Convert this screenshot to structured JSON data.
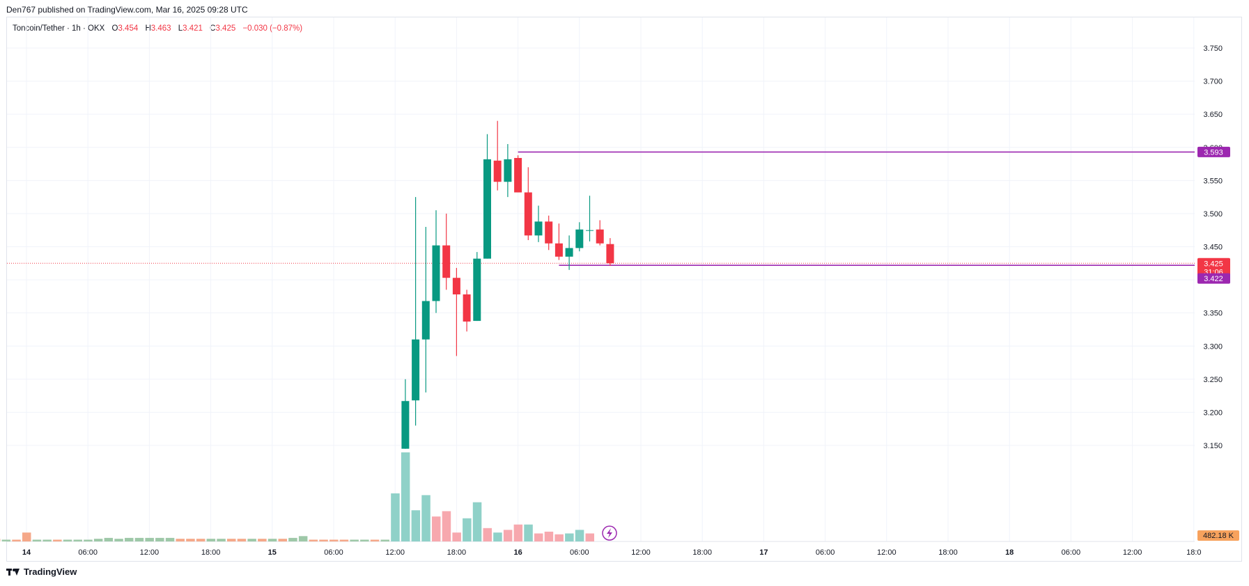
{
  "header": {
    "published": "Den767 published on TradingView.com, Mar 16, 2025 09:28 UTC"
  },
  "legend": {
    "symbol": "Toncoin/Tether · 1h · OKX",
    "o_label": "O",
    "o": "3.454",
    "h_label": "H",
    "h": "3.463",
    "l_label": "L",
    "l": "3.421",
    "c_label": "C",
    "c": "3.425",
    "change": "−0.030 (−0.87%)"
  },
  "footer": {
    "brand": "TradingView"
  },
  "colors": {
    "up": "#089981",
    "down": "#f23645",
    "vol_up": "#8fd1c8",
    "vol_down": "#f7a8ae",
    "vol_up_old": "#9ec8a8",
    "vol_down_old": "#f5a889",
    "line": "#9c27b0",
    "volume_badge": "#f7a25d",
    "grid": "#f0f3fa"
  },
  "chart_data": {
    "type": "candlestick",
    "title": "Toncoin/Tether · 1h · OKX",
    "y_axis": {
      "ticks": [
        "3.750",
        "3.700",
        "3.650",
        "3.600",
        "3.550",
        "3.500",
        "3.450",
        "3.400",
        "3.350",
        "3.300",
        "3.250",
        "3.200",
        "3.150"
      ],
      "range": [
        3.12,
        3.77
      ]
    },
    "x_axis": {
      "ticks": [
        "14",
        "06:00",
        "12:00",
        "18:00",
        "15",
        "06:00",
        "12:00",
        "18:00",
        "16",
        "06:00",
        "12:00",
        "18:00",
        "17",
        "06:00",
        "12:00",
        "18:00",
        "18",
        "06:00",
        "12:00",
        "18:0"
      ],
      "start": "Mar 14 00:00",
      "interval_hours": 1
    },
    "candles": [
      {
        "t": "Mar 15 13:00",
        "o": 3.145,
        "h": 3.25,
        "l": 3.145,
        "c": 3.217
      },
      {
        "t": "Mar 15 14:00",
        "o": 3.218,
        "h": 3.525,
        "l": 3.18,
        "c": 3.31
      },
      {
        "t": "Mar 15 15:00",
        "o": 3.31,
        "h": 3.48,
        "l": 3.23,
        "c": 3.368
      },
      {
        "t": "Mar 15 16:00",
        "o": 3.368,
        "h": 3.505,
        "l": 3.35,
        "c": 3.452
      },
      {
        "t": "Mar 15 17:00",
        "o": 3.452,
        "h": 3.5,
        "l": 3.385,
        "c": 3.403
      },
      {
        "t": "Mar 15 18:00",
        "o": 3.403,
        "h": 3.418,
        "l": 3.285,
        "c": 3.378
      },
      {
        "t": "Mar 15 19:00",
        "o": 3.378,
        "h": 3.385,
        "l": 3.322,
        "c": 3.337
      },
      {
        "t": "Mar 15 20:00",
        "o": 3.338,
        "h": 3.442,
        "l": 3.338,
        "c": 3.432
      },
      {
        "t": "Mar 15 21:00",
        "o": 3.432,
        "h": 3.62,
        "l": 3.432,
        "c": 3.582
      },
      {
        "t": "Mar 15 22:00",
        "o": 3.58,
        "h": 3.64,
        "l": 3.535,
        "c": 3.548
      },
      {
        "t": "Mar 15 23:00",
        "o": 3.548,
        "h": 3.605,
        "l": 3.525,
        "c": 3.582
      },
      {
        "t": "Mar 16 00:00",
        "o": 3.584,
        "h": 3.588,
        "l": 3.532,
        "c": 3.532
      },
      {
        "t": "Mar 16 01:00",
        "o": 3.532,
        "h": 3.57,
        "l": 3.46,
        "c": 3.467
      },
      {
        "t": "Mar 16 02:00",
        "o": 3.467,
        "h": 3.512,
        "l": 3.457,
        "c": 3.488
      },
      {
        "t": "Mar 16 03:00",
        "o": 3.488,
        "h": 3.497,
        "l": 3.445,
        "c": 3.455
      },
      {
        "t": "Mar 16 04:00",
        "o": 3.455,
        "h": 3.485,
        "l": 3.43,
        "c": 3.435
      },
      {
        "t": "Mar 16 05:00",
        "o": 3.435,
        "h": 3.467,
        "l": 3.415,
        "c": 3.448
      },
      {
        "t": "Mar 16 06:00",
        "o": 3.448,
        "h": 3.487,
        "l": 3.443,
        "c": 3.476
      },
      {
        "t": "Mar 16 07:00",
        "o": 3.475,
        "h": 3.527,
        "l": 3.458,
        "c": 3.475
      },
      {
        "t": "Mar 16 08:00",
        "o": 3.476,
        "h": 3.49,
        "l": 3.452,
        "c": 3.455
      },
      {
        "t": "Mar 16 09:00",
        "o": 3.454,
        "h": 3.463,
        "l": 3.421,
        "c": 3.425
      }
    ],
    "volume_bars": [
      {
        "dir": "up",
        "v": 0.02
      },
      {
        "dir": "down",
        "v": 0.03
      },
      {
        "dir": "up",
        "v": 0.02
      },
      {
        "dir": "down",
        "v": 0.02
      },
      {
        "dir": "down",
        "v": 0.1
      },
      {
        "dir": "up",
        "v": 0.02
      },
      {
        "dir": "up",
        "v": 0.02
      },
      {
        "dir": "down",
        "v": 0.02
      },
      {
        "dir": "up",
        "v": 0.02
      },
      {
        "dir": "up",
        "v": 0.02
      },
      {
        "dir": "up",
        "v": 0.02
      },
      {
        "dir": "up",
        "v": 0.03
      },
      {
        "dir": "up",
        "v": 0.04
      },
      {
        "dir": "up",
        "v": 0.03
      },
      {
        "dir": "up",
        "v": 0.04
      },
      {
        "dir": "up",
        "v": 0.04
      },
      {
        "dir": "up",
        "v": 0.04
      },
      {
        "dir": "up",
        "v": 0.04
      },
      {
        "dir": "up",
        "v": 0.04
      },
      {
        "dir": "down",
        "v": 0.03
      },
      {
        "dir": "down",
        "v": 0.03
      },
      {
        "dir": "down",
        "v": 0.03
      },
      {
        "dir": "up",
        "v": 0.03
      },
      {
        "dir": "up",
        "v": 0.03
      },
      {
        "dir": "down",
        "v": 0.03
      },
      {
        "dir": "down",
        "v": 0.03
      },
      {
        "dir": "up",
        "v": 0.03
      },
      {
        "dir": "down",
        "v": 0.03
      },
      {
        "dir": "up",
        "v": 0.03
      },
      {
        "dir": "down",
        "v": 0.03
      },
      {
        "dir": "up",
        "v": 0.04
      },
      {
        "dir": "up",
        "v": 0.06
      },
      {
        "dir": "down",
        "v": 0.02
      },
      {
        "dir": "down",
        "v": 0.02
      },
      {
        "dir": "down",
        "v": 0.02
      },
      {
        "dir": "down",
        "v": 0.02
      },
      {
        "dir": "up",
        "v": 0.02
      },
      {
        "dir": "up",
        "v": 0.02
      },
      {
        "dir": "down",
        "v": 0.02
      },
      {
        "dir": "up",
        "v": 0.02
      },
      {
        "dir": "up",
        "v": 0.54
      },
      {
        "dir": "up",
        "v": 1.0
      },
      {
        "dir": "up",
        "v": 0.35
      },
      {
        "dir": "up",
        "v": 0.52
      },
      {
        "dir": "down",
        "v": 0.28
      },
      {
        "dir": "down",
        "v": 0.34
      },
      {
        "dir": "down",
        "v": 0.1
      },
      {
        "dir": "up",
        "v": 0.26
      },
      {
        "dir": "up",
        "v": 0.44
      },
      {
        "dir": "down",
        "v": 0.15
      },
      {
        "dir": "up",
        "v": 0.1
      },
      {
        "dir": "down",
        "v": 0.13
      },
      {
        "dir": "down",
        "v": 0.19
      },
      {
        "dir": "up",
        "v": 0.19
      },
      {
        "dir": "down",
        "v": 0.09
      },
      {
        "dir": "down",
        "v": 0.11
      },
      {
        "dir": "down",
        "v": 0.08
      },
      {
        "dir": "up",
        "v": 0.09
      },
      {
        "dir": "up",
        "v": 0.13
      },
      {
        "dir": "down",
        "v": 0.09
      }
    ],
    "horizontal_lines": [
      {
        "price": 3.593,
        "label": "3.593",
        "from": "Mar 16 00:00"
      },
      {
        "price": 3.422,
        "label": "3.422",
        "from": "Mar 16 04:00"
      }
    ],
    "last_price": {
      "price": 3.425,
      "label": "3.425",
      "countdown": "31:06"
    },
    "volume_badge": "482.18 K",
    "grid": true
  }
}
